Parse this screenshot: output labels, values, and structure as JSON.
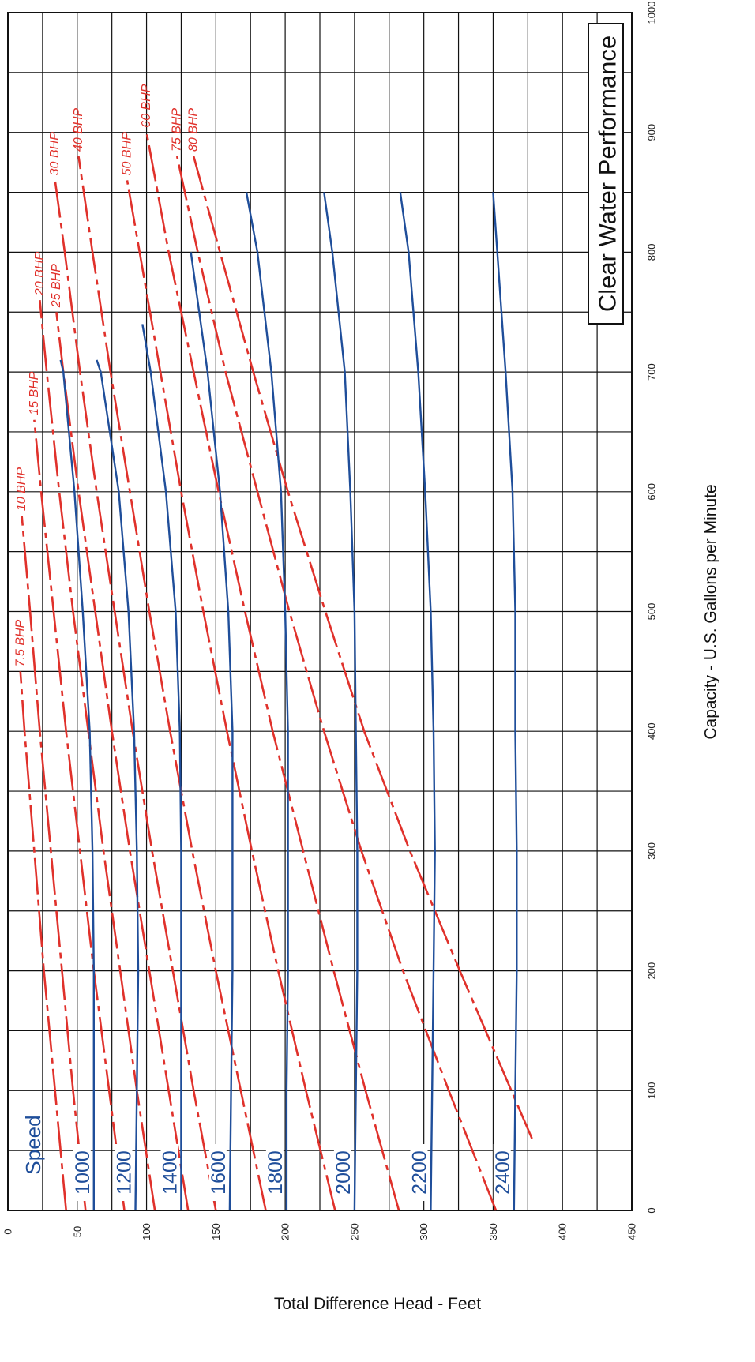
{
  "chart_data": {
    "type": "line",
    "title": "Clear Water Performance",
    "xlabel": "Capacity - U.S. Gallons per Minute",
    "ylabel": "Total Difference Head - Feet",
    "xlim": [
      0,
      1000
    ],
    "ylim": [
      0,
      450
    ],
    "x_ticks": [
      "0",
      "100",
      "200",
      "300",
      "400",
      "500",
      "600",
      "700",
      "800",
      "900",
      "1000"
    ],
    "y_ticks": [
      "0",
      "50",
      "100",
      "150",
      "200",
      "250",
      "300",
      "350",
      "400",
      "450"
    ],
    "grid": true,
    "speed_label": "Speed",
    "colors": {
      "speed": "#1f4e9a",
      "bhp": "#e0312b",
      "grid": "#111111"
    },
    "speed_curves": [
      {
        "name": "2400",
        "x": [
          0,
          100,
          200,
          300,
          400,
          500,
          600,
          700,
          800,
          850
        ],
        "y": [
          365,
          366,
          367,
          367,
          366,
          366,
          364,
          359,
          353,
          350
        ]
      },
      {
        "name": "2200",
        "x": [
          0,
          100,
          200,
          300,
          400,
          500,
          600,
          700,
          800,
          850
        ],
        "y": [
          305,
          306,
          307,
          308,
          307,
          305,
          301,
          296,
          289,
          283
        ]
      },
      {
        "name": "2000",
        "x": [
          0,
          100,
          200,
          300,
          400,
          500,
          600,
          700,
          800,
          850
        ],
        "y": [
          250,
          251,
          252,
          252,
          251,
          250,
          247,
          243,
          234,
          228
        ]
      },
      {
        "name": "1800",
        "x": [
          0,
          100,
          200,
          300,
          400,
          500,
          600,
          700,
          800,
          850
        ],
        "y": [
          201,
          201,
          202,
          202,
          202,
          200,
          197,
          190,
          180,
          172
        ]
      },
      {
        "name": "1600",
        "x": [
          0,
          100,
          200,
          300,
          400,
          500,
          600,
          700,
          800
        ],
        "y": [
          160,
          161,
          162,
          162,
          162,
          159,
          153,
          144,
          132
        ]
      },
      {
        "name": "1400",
        "x": [
          0,
          100,
          200,
          300,
          400,
          500,
          600,
          700,
          740
        ],
        "y": [
          125,
          125,
          125,
          125,
          124,
          121,
          114,
          103,
          97
        ]
      },
      {
        "name": "1200",
        "x": [
          0,
          100,
          200,
          300,
          400,
          500,
          600,
          700,
          710
        ],
        "y": [
          92,
          93,
          94,
          93,
          91,
          87,
          80,
          67,
          64
        ]
      },
      {
        "name": "1000",
        "x": [
          0,
          100,
          200,
          300,
          400,
          500,
          600,
          700,
          710
        ],
        "y": [
          62,
          62,
          62,
          61,
          59,
          54,
          48,
          40,
          38
        ]
      }
    ],
    "bhp_curves": [
      {
        "name": "80 BHP",
        "x": [
          60,
          200,
          300,
          400,
          500,
          600,
          700,
          800,
          880
        ],
        "y": [
          378,
          326,
          290,
          257,
          229,
          202,
          177,
          153,
          134
        ]
      },
      {
        "name": "75 BHP",
        "x": [
          0,
          100,
          200,
          300,
          400,
          500,
          600,
          700,
          800,
          880
        ],
        "y": [
          352,
          318,
          285,
          255,
          228,
          203,
          180,
          157,
          137,
          122
        ]
      },
      {
        "name": "60 BHP",
        "x": [
          0,
          100,
          200,
          300,
          400,
          500,
          600,
          700,
          800,
          900
        ],
        "y": [
          282,
          258,
          235,
          213,
          191,
          171,
          152,
          134,
          116,
          100
        ]
      },
      {
        "name": "50 BHP",
        "x": [
          0,
          100,
          200,
          300,
          400,
          500,
          600,
          700,
          800,
          860
        ],
        "y": [
          236,
          215,
          195,
          176,
          158,
          141,
          125,
          110,
          95,
          86
        ]
      },
      {
        "name": "40 BHP",
        "x": [
          0,
          100,
          200,
          300,
          400,
          500,
          600,
          700,
          800,
          880
        ],
        "y": [
          186,
          168,
          150,
          133,
          117,
          102,
          88,
          74,
          61,
          51
        ]
      },
      {
        "name": "30 BHP",
        "x": [
          0,
          100,
          200,
          300,
          400,
          500,
          600,
          700,
          800,
          860
        ],
        "y": [
          150,
          134,
          119,
          104,
          90,
          77,
          64,
          52,
          41,
          34
        ]
      },
      {
        "name": "25 BHP",
        "x": [
          0,
          100,
          200,
          300,
          400,
          500,
          600,
          700,
          750
        ],
        "y": [
          130,
          116,
          102,
          88,
          75,
          63,
          51,
          40,
          35
        ]
      },
      {
        "name": "20 BHP",
        "x": [
          0,
          100,
          200,
          300,
          400,
          500,
          600,
          700,
          760
        ],
        "y": [
          106,
          93,
          81,
          69,
          58,
          47,
          37,
          28,
          23
        ]
      },
      {
        "name": "15 BHP",
        "x": [
          0,
          100,
          200,
          300,
          400,
          500,
          600,
          660
        ],
        "y": [
          84,
          73,
          62,
          52,
          42,
          33,
          24,
          19
        ]
      },
      {
        "name": "10 BHP",
        "x": [
          0,
          100,
          200,
          300,
          400,
          500,
          580
        ],
        "y": [
          56,
          47,
          39,
          31,
          23,
          16,
          10
        ]
      },
      {
        "name": "7.5 BHP",
        "x": [
          0,
          100,
          200,
          300,
          400,
          450
        ],
        "y": [
          42,
          34,
          26,
          19,
          12,
          9
        ]
      }
    ]
  }
}
